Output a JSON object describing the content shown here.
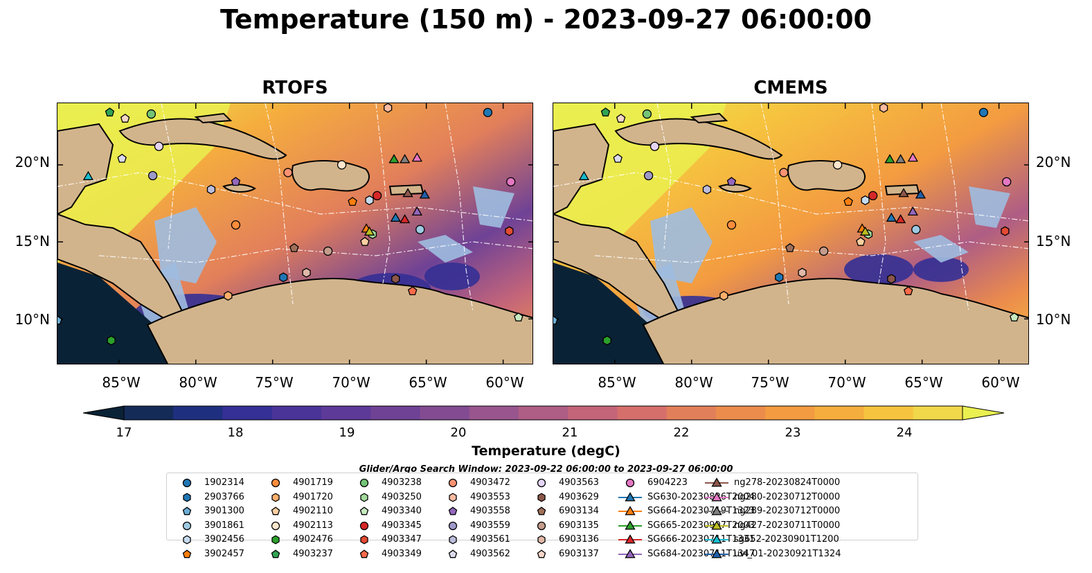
{
  "title": "Temperature (150 m) - 2023-09-27 06:00:00",
  "panels": [
    {
      "title": "RTOFS"
    },
    {
      "title": "CMEMS"
    }
  ],
  "axes": {
    "lon_ticks": [
      "85°W",
      "80°W",
      "75°W",
      "70°W",
      "65°W",
      "60°W"
    ],
    "lat_ticks": [
      "20°N",
      "15°N",
      "10°N"
    ],
    "lon_range": [
      -89,
      -58
    ],
    "lat_range": [
      7,
      24
    ]
  },
  "colorbar": {
    "label": "Temperature (degC)",
    "ticks": [
      "17",
      "18",
      "19",
      "20",
      "21",
      "22",
      "23",
      "24"
    ],
    "range": [
      16.5,
      24.5
    ],
    "extend": "both",
    "colors": [
      "#0a2235",
      "#142b58",
      "#1f2f80",
      "#343095",
      "#4a3498",
      "#5e3a98",
      "#6f4296",
      "#824b92",
      "#98558e",
      "#ae5d85",
      "#c4657a",
      "#d56f6c",
      "#e27f5b",
      "#ec8c4c",
      "#f39b41",
      "#f5ad3e",
      "#f6c43f",
      "#f1d74a",
      "#eaf050"
    ]
  },
  "search_window": "Glider/Argo Search Window: 2023-09-22 06:00:00 to 2023-09-27 06:00:00",
  "legend": [
    {
      "label": "1902314",
      "color": "#1f77b4",
      "marker": "circle"
    },
    {
      "label": "2903766",
      "color": "#1f77b4",
      "marker": "hexagon"
    },
    {
      "label": "3901300",
      "color": "#6baed6",
      "marker": "pentagon"
    },
    {
      "label": "3901861",
      "color": "#9ecae1",
      "marker": "circle"
    },
    {
      "label": "3902456",
      "color": "#c6dbef",
      "marker": "hexagon"
    },
    {
      "label": "3902457",
      "color": "#ff7f0e",
      "marker": "pentagon"
    },
    {
      "label": "4901719",
      "color": "#fd8d3c",
      "marker": "circle"
    },
    {
      "label": "4901720",
      "color": "#fdae6b",
      "marker": "hexagon"
    },
    {
      "label": "4902110",
      "color": "#fdd0a2",
      "marker": "pentagon"
    },
    {
      "label": "4902113",
      "color": "#fee6ce",
      "marker": "circle"
    },
    {
      "label": "4902476",
      "color": "#2ca02c",
      "marker": "hexagon"
    },
    {
      "label": "4903237",
      "color": "#31a354",
      "marker": "pentagon"
    },
    {
      "label": "4903238",
      "color": "#74c476",
      "marker": "circle"
    },
    {
      "label": "4903250",
      "color": "#a1d99b",
      "marker": "hexagon"
    },
    {
      "label": "4903340",
      "color": "#c7e9c0",
      "marker": "pentagon"
    },
    {
      "label": "4903345",
      "color": "#d62728",
      "marker": "circle"
    },
    {
      "label": "4903347",
      "color": "#e34a33",
      "marker": "hexagon"
    },
    {
      "label": "4903349",
      "color": "#fb6a4a",
      "marker": "pentagon"
    },
    {
      "label": "4903472",
      "color": "#fc9272",
      "marker": "circle"
    },
    {
      "label": "4903553",
      "color": "#fcbba1",
      "marker": "hexagon"
    },
    {
      "label": "4903558",
      "color": "#9467bd",
      "marker": "pentagon"
    },
    {
      "label": "4903559",
      "color": "#9e9ac8",
      "marker": "circle"
    },
    {
      "label": "4903561",
      "color": "#bcbddc",
      "marker": "hexagon"
    },
    {
      "label": "4903562",
      "color": "#dadaeb",
      "marker": "pentagon"
    },
    {
      "label": "4903563",
      "color": "#e5d5f5",
      "marker": "circle"
    },
    {
      "label": "4903629",
      "color": "#8c564b",
      "marker": "hexagon"
    },
    {
      "label": "6903134",
      "color": "#a0705a",
      "marker": "pentagon"
    },
    {
      "label": "6903135",
      "color": "#c49c8c",
      "marker": "circle"
    },
    {
      "label": "6903136",
      "color": "#e0b8a8",
      "marker": "hexagon"
    },
    {
      "label": "6903137",
      "color": "#f5d6c8",
      "marker": "pentagon"
    },
    {
      "label": "6904223",
      "color": "#e377c2",
      "marker": "circle"
    },
    {
      "label": "SG630-20230826T2004",
      "color": "#1f77b4",
      "marker": "triangle"
    },
    {
      "label": "SG664-20230719T1323",
      "color": "#ff7f0e",
      "marker": "triangle"
    },
    {
      "label": "SG665-20230907T2003",
      "color": "#2ca02c",
      "marker": "triangle"
    },
    {
      "label": "SG666-20230711T1331",
      "color": "#d62728",
      "marker": "triangle"
    },
    {
      "label": "SG684-20230711T1347",
      "color": "#9467bd",
      "marker": "triangle"
    },
    {
      "label": "ng278-20230824T0000",
      "color": "#8c564b",
      "marker": "triangle"
    },
    {
      "label": "ng280-20230712T0000",
      "color": "#e377c2",
      "marker": "triangle"
    },
    {
      "label": "ng289-20230712T0000",
      "color": "#7f7f7f",
      "marker": "triangle"
    },
    {
      "label": "ng427-20230711T0000",
      "color": "#bcbd22",
      "marker": "triangle"
    },
    {
      "label": "sg652-20230901T1200",
      "color": "#17becf",
      "marker": "triangle"
    },
    {
      "label": "uvi_01-20230921T1324",
      "color": "#1f5fa8",
      "marker": "triangle"
    }
  ],
  "markers": [
    {
      "id": "1902314",
      "lon": -61.0,
      "lat": 23.4
    },
    {
      "id": "2903766",
      "lon": -74.3,
      "lat": 12.7
    },
    {
      "id": "3901300",
      "lon": -89.0,
      "lat": 9.9
    },
    {
      "id": "3901861",
      "lon": -65.4,
      "lat": 15.8
    },
    {
      "id": "3902456",
      "lon": -68.7,
      "lat": 17.7
    },
    {
      "id": "3902457",
      "lon": -69.8,
      "lat": 17.6
    },
    {
      "id": "4901719",
      "lon": -77.4,
      "lat": 16.1
    },
    {
      "id": "4901720",
      "lon": -77.9,
      "lat": 11.5
    },
    {
      "id": "4902110",
      "lon": -69.0,
      "lat": 15.0
    },
    {
      "id": "4902113",
      "lon": -70.5,
      "lat": 20.0
    },
    {
      "id": "4902476",
      "lon": -85.5,
      "lat": 8.6
    },
    {
      "id": "4903237",
      "lon": -85.6,
      "lat": 23.4
    },
    {
      "id": "4903238",
      "lon": -82.9,
      "lat": 23.3
    },
    {
      "id": "4903250",
      "lon": -68.5,
      "lat": 15.5
    },
    {
      "id": "4903340",
      "lon": -59.0,
      "lat": 10.1
    },
    {
      "id": "4903345",
      "lon": -68.2,
      "lat": 18.0
    },
    {
      "id": "4903347",
      "lon": -59.6,
      "lat": 15.7
    },
    {
      "id": "4903349",
      "lon": -65.9,
      "lat": 11.8
    },
    {
      "id": "4903472",
      "lon": -74.0,
      "lat": 19.5
    },
    {
      "id": "4903553",
      "lon": -67.5,
      "lat": 23.7
    },
    {
      "id": "4903558",
      "lon": -77.4,
      "lat": 18.9
    },
    {
      "id": "4903559",
      "lon": -82.8,
      "lat": 19.3
    },
    {
      "id": "4903561",
      "lon": -79.0,
      "lat": 18.4
    },
    {
      "id": "4903562",
      "lon": -84.8,
      "lat": 20.4
    },
    {
      "id": "4903563",
      "lon": -82.4,
      "lat": 21.2
    },
    {
      "id": "4903629",
      "lon": -67.0,
      "lat": 12.6
    },
    {
      "id": "6903134",
      "lon": -73.6,
      "lat": 14.6
    },
    {
      "id": "6903135",
      "lon": -71.4,
      "lat": 14.4
    },
    {
      "id": "6903136",
      "lon": -72.8,
      "lat": 13.0
    },
    {
      "id": "6903137",
      "lon": -84.6,
      "lat": 23.0
    },
    {
      "id": "6904223",
      "lon": -59.5,
      "lat": 18.9
    },
    {
      "id": "SG630-20230826T2004",
      "lon": -67.0,
      "lat": 16.6
    },
    {
      "id": "SG664-20230719T1323",
      "lon": -68.9,
      "lat": 15.9
    },
    {
      "id": "SG665-20230907T2003",
      "lon": -67.1,
      "lat": 20.4
    },
    {
      "id": "SG666-20230711T1331",
      "lon": -66.4,
      "lat": 16.5
    },
    {
      "id": "SG684-20230711T1347",
      "lon": -65.6,
      "lat": 17.0
    },
    {
      "id": "ng278-20230824T0000",
      "lon": -66.2,
      "lat": 18.2
    },
    {
      "id": "ng280-20230712T0000",
      "lon": -65.6,
      "lat": 20.5
    },
    {
      "id": "ng289-20230712T0000",
      "lon": -66.4,
      "lat": 20.4
    },
    {
      "id": "ng427-20230711T0000",
      "lon": -68.7,
      "lat": 15.7
    },
    {
      "id": "sg652-20230901T1200",
      "lon": -87.0,
      "lat": 19.3
    },
    {
      "id": "uvi_01-20230921T1324",
      "lon": -65.1,
      "lat": 18.1
    }
  ]
}
